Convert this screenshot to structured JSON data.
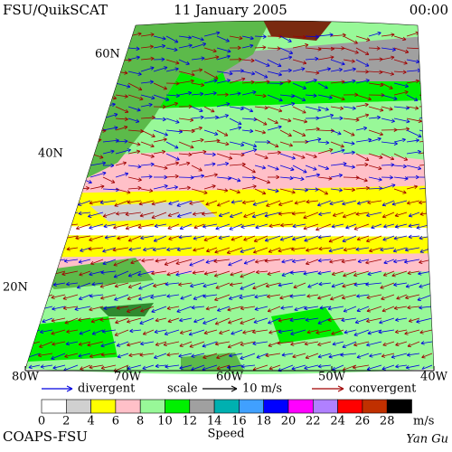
{
  "header": {
    "left": "FSU/QuikSCAT",
    "center": "11 January 2005",
    "right": "00:00"
  },
  "map": {
    "lat_labels": [
      "60N",
      "40N",
      "20N"
    ],
    "lon_labels": [
      "80W",
      "70W",
      "60W",
      "50W",
      "40W"
    ]
  },
  "legend": {
    "divergent": "divergent",
    "scale": "scale",
    "scale_value": "10 m/s",
    "convergent": "convergent",
    "divergent_color": "#0000e0",
    "convergent_color": "#a00000"
  },
  "colorbar": {
    "ticks": [
      0,
      2,
      4,
      6,
      8,
      10,
      12,
      14,
      16,
      18,
      20,
      22,
      24,
      26,
      28
    ],
    "colors": [
      "#ffffff",
      "#d0d0d0",
      "#ffff00",
      "#ffc0c8",
      "#98f898",
      "#00f000",
      "#a0a0a0",
      "#00b0b0",
      "#40a0ff",
      "#0000ff",
      "#ff00ff",
      "#b080ff",
      "#ff0000",
      "#c03000",
      "#000000"
    ],
    "unit": "m/s",
    "label": "Speed"
  },
  "footer": {
    "left": "COAPS-FSU",
    "right": "Yan Gu"
  }
}
